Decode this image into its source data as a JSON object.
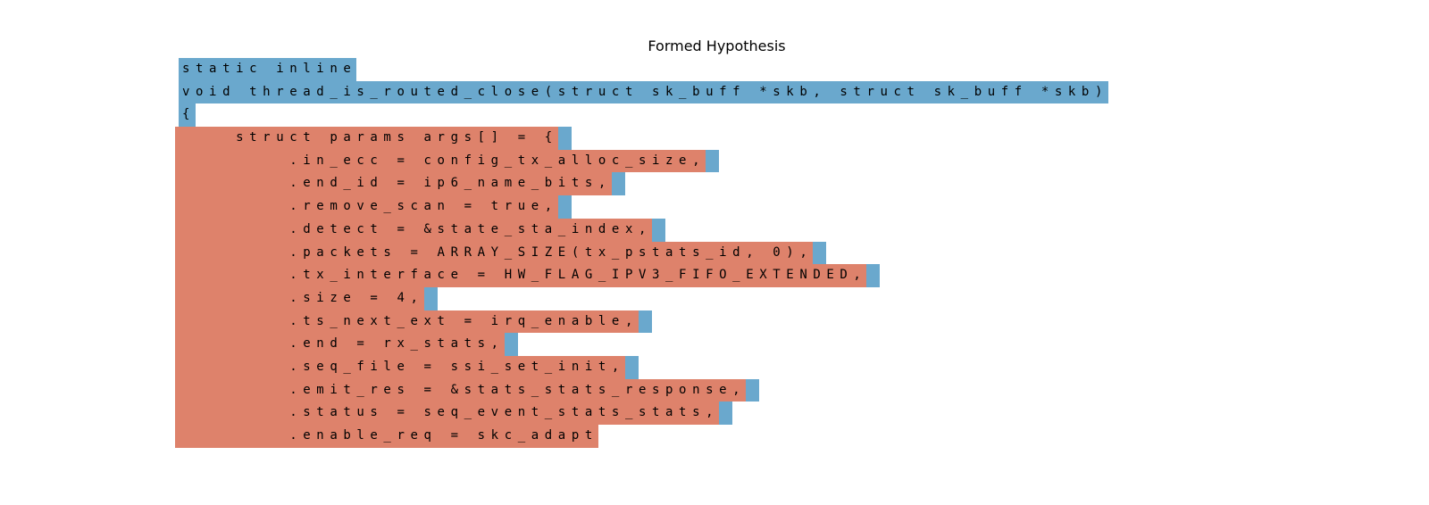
{
  "title": "Formed Hypothesis",
  "colors": {
    "context": "#6aa8cd",
    "hypothesis": "#de826b",
    "text": "#000000",
    "background": "#ffffff"
  },
  "code_lines": [
    {
      "segments": [
        {
          "text": "static inline",
          "kind": "context"
        }
      ],
      "newline": "none"
    },
    {
      "segments": [
        {
          "text": "void thread_is_routed_close(struct sk_buff *skb, struct sk_buff *skb)",
          "kind": "context"
        }
      ],
      "newline": "none"
    },
    {
      "segments": [
        {
          "text": "{",
          "kind": "context"
        }
      ],
      "newline": "none"
    },
    {
      "segments": [
        {
          "text": "    struct params args[] = {",
          "kind": "hypothesis"
        }
      ],
      "newline": "context"
    },
    {
      "segments": [
        {
          "text": "        .in_ecc = config_tx_alloc_size,",
          "kind": "hypothesis"
        }
      ],
      "newline": "context"
    },
    {
      "segments": [
        {
          "text": "        .end_id = ip6_name_bits,",
          "kind": "hypothesis"
        }
      ],
      "newline": "context"
    },
    {
      "segments": [
        {
          "text": "        .remove_scan = true,",
          "kind": "hypothesis"
        }
      ],
      "newline": "context"
    },
    {
      "segments": [
        {
          "text": "        .detect = &state_sta_index,",
          "kind": "hypothesis"
        }
      ],
      "newline": "context"
    },
    {
      "segments": [
        {
          "text": "        .packets = ARRAY_SIZE(tx_pstats_id, 0),",
          "kind": "hypothesis"
        }
      ],
      "newline": "context"
    },
    {
      "segments": [
        {
          "text": "        .tx_interface = HW_FLAG_IPV3_FIFO_EXTENDED,",
          "kind": "hypothesis"
        }
      ],
      "newline": "context"
    },
    {
      "segments": [
        {
          "text": "        .size = 4,",
          "kind": "hypothesis"
        }
      ],
      "newline": "context"
    },
    {
      "segments": [
        {
          "text": "        .ts_next_ext = irq_enable,",
          "kind": "hypothesis"
        }
      ],
      "newline": "context"
    },
    {
      "segments": [
        {
          "text": "        .end = rx_stats,",
          "kind": "hypothesis"
        }
      ],
      "newline": "context"
    },
    {
      "segments": [
        {
          "text": "        .seq_file = ssi_set_init,",
          "kind": "hypothesis"
        }
      ],
      "newline": "context"
    },
    {
      "segments": [
        {
          "text": "        .emit_res = &stats_stats_response,",
          "kind": "hypothesis"
        }
      ],
      "newline": "context"
    },
    {
      "segments": [
        {
          "text": "        .status = seq_event_stats_stats,",
          "kind": "hypothesis"
        }
      ],
      "newline": "context"
    },
    {
      "segments": [
        {
          "text": "        .enable_req = skc_adapt",
          "kind": "hypothesis"
        }
      ],
      "newline": "none"
    }
  ]
}
